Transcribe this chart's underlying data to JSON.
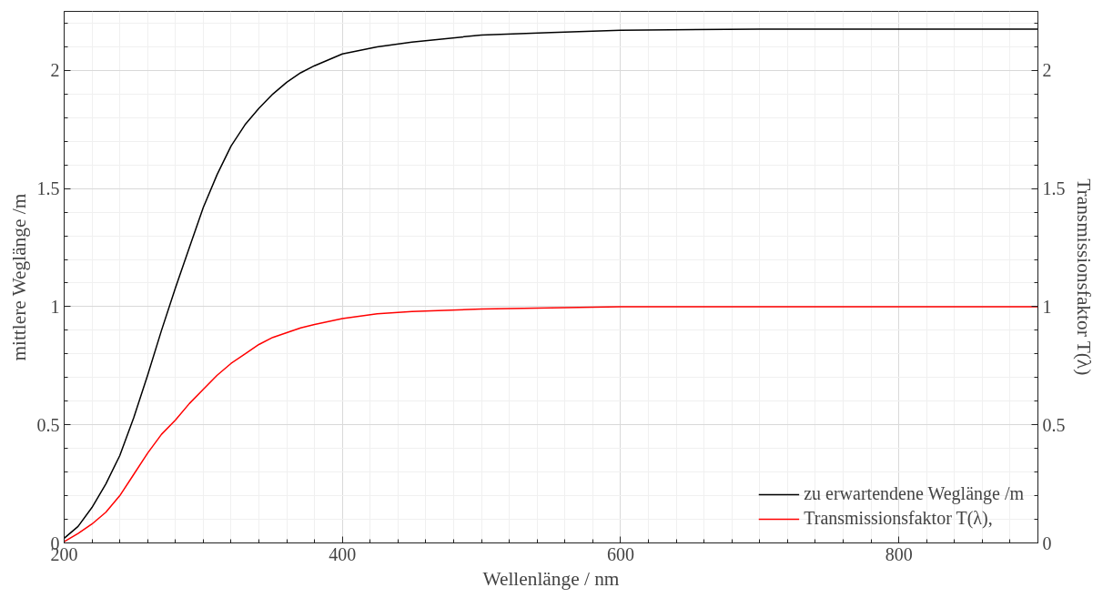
{
  "chart_data": {
    "type": "line",
    "xlabel": "Wellenlänge / nm",
    "ylabel": "mittlere Weglänge /m",
    "y2label": "Transmissionsfaktor T(λ)",
    "xlim": [
      200,
      900
    ],
    "xticks": [
      200,
      400,
      600,
      800
    ],
    "ylim": [
      0,
      2.25
    ],
    "yticks": [
      0,
      0.5,
      1,
      1.5,
      2
    ],
    "y2lim": [
      0,
      2.25
    ],
    "y2ticks": [
      0,
      0.5,
      1,
      1.5,
      2
    ],
    "grid": true,
    "legend": "bottom right",
    "line_style": "solid",
    "marker": "none",
    "series": [
      {
        "name": "zu erwartendene Weglänge /m",
        "color": "#000000",
        "x": [
          200,
          210,
          220,
          230,
          240,
          250,
          260,
          270,
          280,
          290,
          300,
          310,
          320,
          330,
          340,
          350,
          360,
          370,
          380,
          400,
          425,
          450,
          500,
          550,
          600,
          700,
          800,
          900
        ],
        "values": [
          0.02,
          0.07,
          0.15,
          0.25,
          0.37,
          0.53,
          0.71,
          0.9,
          1.08,
          1.25,
          1.42,
          1.56,
          1.68,
          1.77,
          1.84,
          1.9,
          1.95,
          1.99,
          2.02,
          2.07,
          2.1,
          2.12,
          2.15,
          2.16,
          2.17,
          2.175,
          2.175,
          2.175
        ]
      },
      {
        "name": "Transmissionsfaktor T(λ),",
        "color": "#ff0000",
        "x": [
          200,
          210,
          220,
          230,
          240,
          250,
          260,
          270,
          280,
          290,
          300,
          310,
          320,
          330,
          340,
          350,
          360,
          370,
          380,
          400,
          425,
          450,
          500,
          550,
          600,
          700,
          800,
          900
        ],
        "values": [
          0.005,
          0.04,
          0.08,
          0.13,
          0.2,
          0.29,
          0.38,
          0.46,
          0.52,
          0.59,
          0.65,
          0.71,
          0.76,
          0.8,
          0.84,
          0.87,
          0.89,
          0.91,
          0.925,
          0.95,
          0.97,
          0.98,
          0.99,
          0.995,
          1.0,
          1.0,
          1.0,
          1.0
        ]
      }
    ]
  }
}
